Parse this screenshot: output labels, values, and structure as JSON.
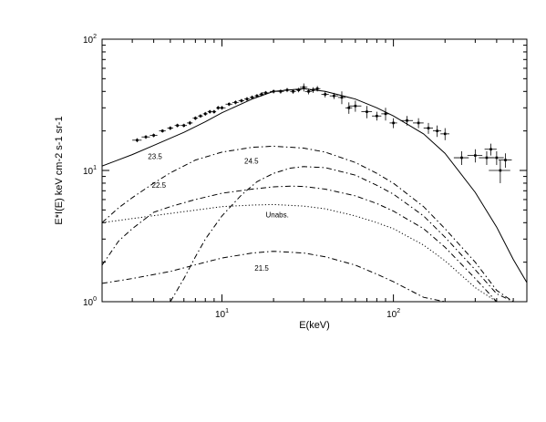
{
  "chart_data": {
    "type": "line",
    "title": "",
    "xlabel": "E(keV)",
    "ylabel": "E*I(E) keV cm-2 s-1 sr-1",
    "xscale": "log",
    "yscale": "log",
    "xlim": [
      2,
      600
    ],
    "ylim": [
      1,
      100
    ],
    "grid": false,
    "x_ticks": [
      {
        "value": 10,
        "base": "10",
        "exp": "1"
      },
      {
        "value": 100,
        "base": "10",
        "exp": "2"
      }
    ],
    "y_ticks": [
      {
        "value": 1,
        "base": "10",
        "exp": "0"
      },
      {
        "value": 10,
        "base": "10",
        "exp": "1"
      },
      {
        "value": 100,
        "base": "10",
        "exp": "2"
      }
    ],
    "series": [
      {
        "label": "",
        "style": "solid",
        "x": [
          2,
          3,
          4,
          6,
          8,
          10,
          15,
          20,
          30,
          40,
          60,
          80,
          100,
          150,
          200,
          300,
          400,
          500,
          600
        ],
        "y": [
          10.8,
          13.2,
          15.5,
          19.5,
          23.5,
          27.5,
          35,
          40,
          42,
          40,
          35,
          30,
          26,
          19,
          13.5,
          6.8,
          3.7,
          2.1,
          1.4
        ]
      },
      {
        "label": "23.5",
        "style": "dashdot",
        "x": [
          2,
          2.5,
          3,
          4,
          5,
          7,
          10,
          15,
          20,
          30,
          40,
          60,
          80,
          100,
          150,
          200,
          300,
          400,
          500,
          600
        ],
        "y": [
          4.0,
          5.2,
          6.2,
          8.0,
          9.6,
          12,
          13.8,
          15,
          15.3,
          14.8,
          13.8,
          11.5,
          9.5,
          8.0,
          5.3,
          3.6,
          2.0,
          1.22,
          1.0,
          1.0
        ]
      },
      {
        "label": "24.5",
        "style": "dashdot",
        "x": [
          5,
          6,
          7,
          8,
          10,
          13,
          16,
          20,
          25,
          30,
          40,
          60,
          80,
          100,
          150,
          200,
          300,
          400,
          500
        ],
        "y": [
          1.0,
          1.5,
          2.2,
          3.0,
          4.5,
          6.5,
          8.2,
          9.5,
          10.4,
          10.7,
          10.5,
          9.2,
          7.7,
          6.6,
          4.5,
          3.1,
          1.75,
          1.15,
          1.0
        ]
      },
      {
        "label": "22.5",
        "style": "dashdot",
        "x": [
          2,
          2.5,
          3,
          4,
          5,
          7,
          10,
          15,
          20,
          25,
          30,
          40,
          60,
          80,
          100,
          150,
          200,
          300,
          400,
          500
        ],
        "y": [
          1.9,
          2.9,
          3.6,
          4.8,
          5.3,
          6.0,
          6.7,
          7.2,
          7.5,
          7.6,
          7.55,
          7.2,
          6.4,
          5.6,
          4.9,
          3.6,
          2.6,
          1.5,
          1.0,
          1.0
        ]
      },
      {
        "label": "Unabs.",
        "style": "dotted",
        "x": [
          2,
          3,
          5,
          8,
          10,
          15,
          20,
          30,
          40,
          60,
          80,
          100,
          150,
          200,
          300,
          400,
          500
        ],
        "y": [
          4.0,
          4.3,
          4.7,
          5.1,
          5.3,
          5.45,
          5.5,
          5.35,
          5.1,
          4.5,
          4.0,
          3.6,
          2.7,
          2.05,
          1.28,
          1.0,
          1.0
        ]
      },
      {
        "label": "21.5",
        "style": "dashdot",
        "x": [
          2,
          3,
          5,
          8,
          10,
          15,
          20,
          30,
          40,
          60,
          80,
          100,
          150,
          200,
          250
        ],
        "y": [
          1.38,
          1.5,
          1.7,
          2.0,
          2.15,
          2.35,
          2.42,
          2.35,
          2.2,
          1.9,
          1.62,
          1.42,
          1.08,
          1.0,
          1.0
        ]
      }
    ],
    "curve_labels": [
      {
        "text": "23.5",
        "x": 3.7,
        "y": 12.2
      },
      {
        "text": "24.5",
        "x": 13.5,
        "y": 11.3
      },
      {
        "text": "22.5",
        "x": 3.9,
        "y": 7.4
      },
      {
        "text": "Unabs.",
        "x": 18,
        "y": 4.4
      },
      {
        "text": "21.5",
        "x": 15.5,
        "y": 1.72
      }
    ],
    "data_points": {
      "x": [
        3.2,
        3.6,
        4.0,
        4.5,
        5.0,
        5.5,
        6.0,
        6.5,
        7.0,
        7.5,
        8.0,
        8.5,
        9.0,
        9.5,
        10.0,
        11,
        12,
        13,
        14,
        15,
        16,
        17,
        18,
        20,
        22,
        24,
        26,
        28,
        30,
        32,
        34,
        36,
        40,
        45,
        50,
        55,
        60,
        70,
        80,
        90,
        100,
        120,
        140,
        160,
        180,
        200,
        250,
        300,
        350,
        370,
        400,
        420,
        450
      ],
      "y": [
        17,
        18,
        18.5,
        20,
        21,
        22,
        22,
        23,
        25,
        26,
        27,
        28,
        28,
        30,
        30,
        32,
        33,
        34,
        35,
        36,
        37,
        38,
        39,
        40,
        40,
        41,
        40,
        41,
        43,
        40,
        41,
        42,
        38,
        37,
        36,
        30,
        31,
        28,
        26,
        27,
        23,
        24,
        23,
        21,
        20,
        19,
        12.5,
        13,
        12.5,
        14.5,
        12.5,
        10,
        12
      ],
      "xerr": [
        0.2,
        0.2,
        0.2,
        0.2,
        0.2,
        0.2,
        0.25,
        0.25,
        0.25,
        0.25,
        0.25,
        0.25,
        0.25,
        0.25,
        0.5,
        0.5,
        0.5,
        0.5,
        0.5,
        0.5,
        0.5,
        0.5,
        1,
        1,
        1,
        1,
        1,
        1,
        1.5,
        1.5,
        1.5,
        1.5,
        2,
        2.5,
        2.5,
        2.5,
        5,
        5,
        5,
        5,
        5,
        10,
        10,
        10,
        10,
        12,
        25,
        30,
        35,
        30,
        40,
        60,
        40
      ],
      "yerr": [
        0.6,
        0.6,
        0.6,
        0.6,
        0.7,
        0.7,
        0.7,
        0.8,
        0.8,
        0.8,
        0.9,
        0.9,
        0.9,
        1.0,
        1.0,
        1.0,
        1.1,
        1.1,
        1.2,
        1.2,
        1.2,
        1.3,
        1.3,
        1.4,
        1.5,
        1.5,
        1.6,
        1.6,
        3,
        2,
        2,
        2,
        2,
        2,
        4,
        3,
        3,
        3,
        2,
        3,
        2,
        2,
        2,
        2,
        2,
        2,
        1.5,
        1.5,
        1.5,
        1.5,
        1.5,
        2,
        1.5
      ]
    }
  }
}
